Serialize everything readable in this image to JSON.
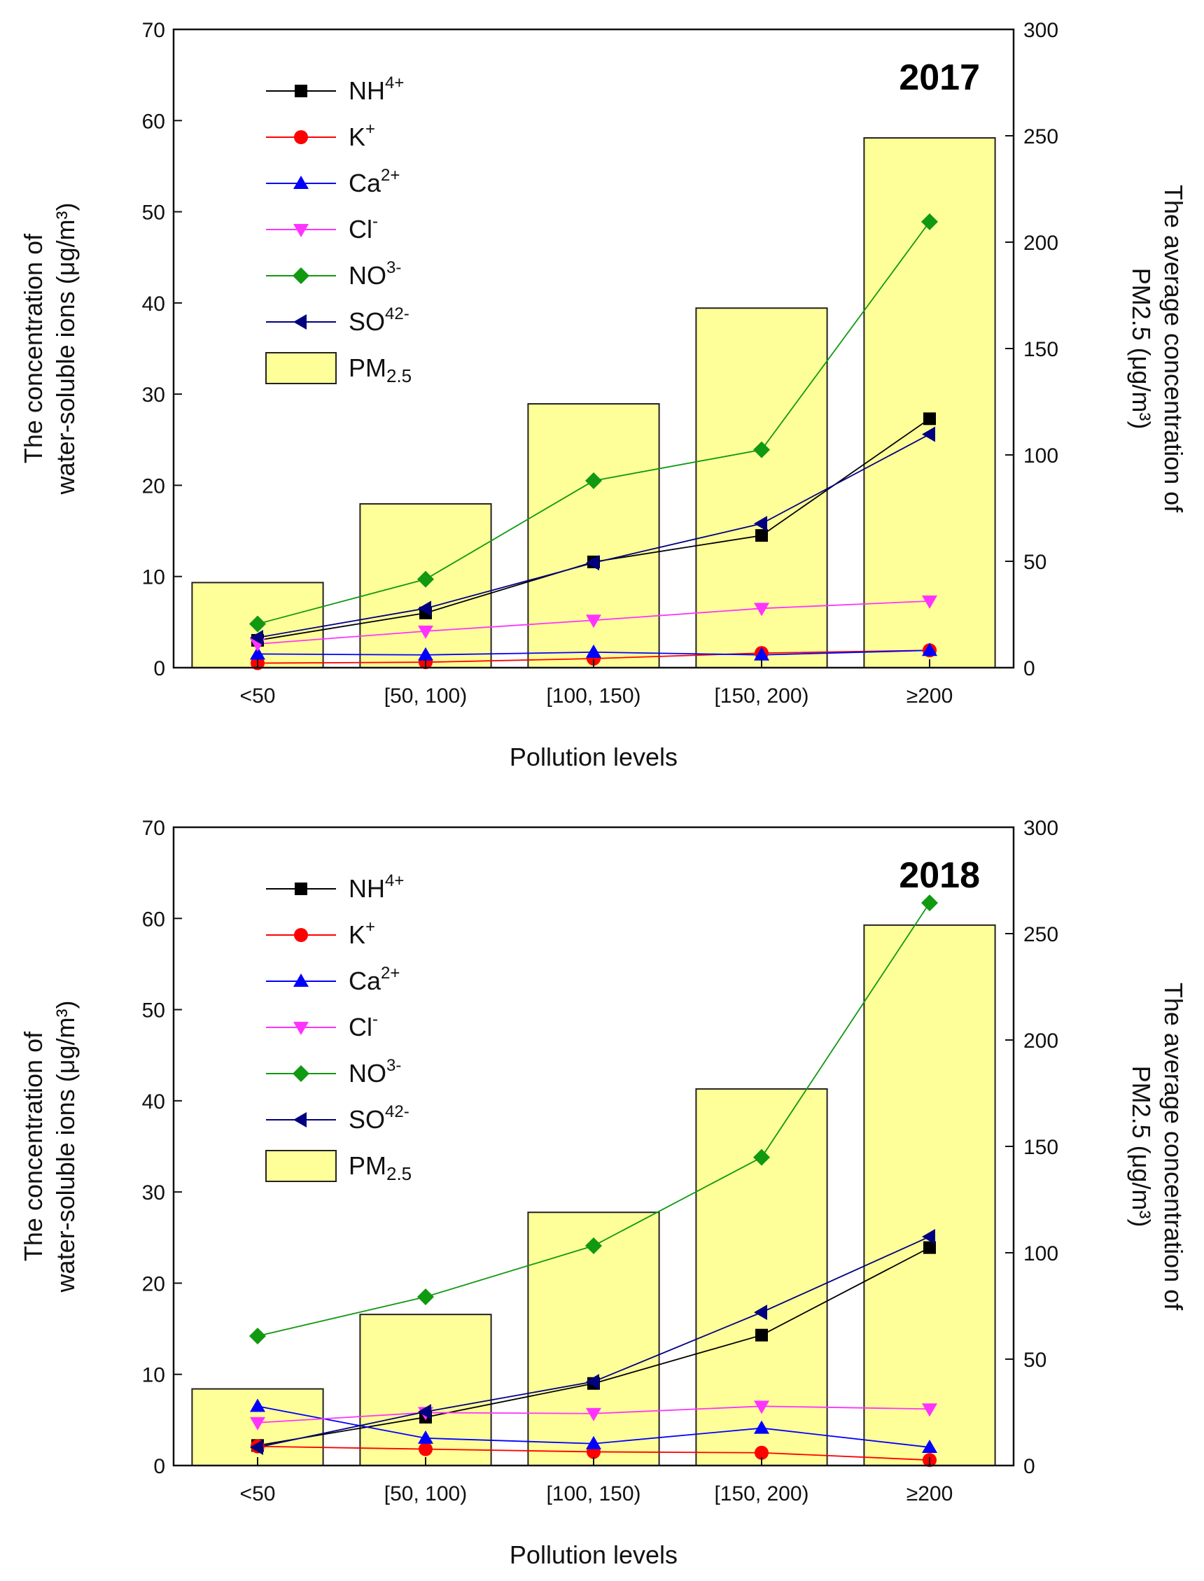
{
  "chart_data": [
    {
      "type": "bar+line",
      "annotation": "2017",
      "xlabel": "Pollution levels",
      "ylabel": "The concentration of|water-soluble ions (μg/m³)",
      "y2label": "The average concentration of|PM2.5 (μg/m³)",
      "ylim": [
        0,
        70
      ],
      "y2lim": [
        0,
        300
      ],
      "yticks": [
        "0",
        "10",
        "20",
        "30",
        "40",
        "50",
        "60",
        "70"
      ],
      "y2ticks": [
        "0",
        "50",
        "100",
        "150",
        "200",
        "250",
        "300"
      ],
      "categories": [
        "<50",
        "[50, 100)",
        "[100, 150)",
        "[150, 200)",
        "≥200"
      ],
      "bars": {
        "name": "PM2.5",
        "axis": "right",
        "color": "#ffff99",
        "values": [
          40,
          77,
          124,
          169,
          249
        ]
      },
      "series": [
        {
          "name": "NH4+",
          "color": "#000000",
          "marker": "square",
          "values": [
            3.0,
            6.0,
            11.6,
            14.5,
            27.3
          ]
        },
        {
          "name": "K+",
          "color": "#ff0000",
          "marker": "circle",
          "values": [
            0.5,
            0.6,
            1.0,
            1.6,
            1.9
          ]
        },
        {
          "name": "Ca2+",
          "color": "#0000ff",
          "marker": "triangle-up",
          "values": [
            1.5,
            1.4,
            1.7,
            1.4,
            1.9
          ]
        },
        {
          "name": "Cl-",
          "color": "#ff33ff",
          "marker": "triangle-down",
          "values": [
            2.6,
            4.0,
            5.2,
            6.5,
            7.3
          ]
        },
        {
          "name": "NO3-",
          "color": "#119911",
          "marker": "diamond",
          "values": [
            4.8,
            9.7,
            20.5,
            23.9,
            48.9
          ]
        },
        {
          "name": "SO42-",
          "color": "#000080",
          "marker": "triangle-left",
          "values": [
            3.3,
            6.5,
            11.5,
            15.8,
            25.6
          ]
        }
      ]
    },
    {
      "type": "bar+line",
      "annotation": "2018",
      "xlabel": "Pollution levels",
      "ylabel": "The concentration of|water-soluble ions (μg/m³)",
      "y2label": "The average concentration of|PM2.5 (μg/m³)",
      "ylim": [
        0,
        70
      ],
      "y2lim": [
        0,
        300
      ],
      "yticks": [
        "0",
        "10",
        "20",
        "30",
        "40",
        "50",
        "60",
        "70"
      ],
      "y2ticks": [
        "0",
        "50",
        "100",
        "150",
        "200",
        "250",
        "300"
      ],
      "categories": [
        "<50",
        "[50, 100)",
        "[100, 150)",
        "[150, 200)",
        "≥200"
      ],
      "bars": {
        "name": "PM2.5",
        "axis": "right",
        "color": "#ffff99",
        "values": [
          36,
          71,
          119,
          177,
          254
        ]
      },
      "series": [
        {
          "name": "NH4+",
          "color": "#000000",
          "marker": "square",
          "values": [
            2.2,
            5.3,
            9.0,
            14.3,
            23.9
          ]
        },
        {
          "name": "K+",
          "color": "#ff0000",
          "marker": "circle",
          "values": [
            2.1,
            1.8,
            1.5,
            1.4,
            0.6
          ]
        },
        {
          "name": "Ca2+",
          "color": "#0000ff",
          "marker": "triangle-up",
          "values": [
            6.5,
            3.0,
            2.4,
            4.1,
            2.0
          ]
        },
        {
          "name": "Cl-",
          "color": "#ff33ff",
          "marker": "triangle-down",
          "values": [
            4.7,
            5.8,
            5.7,
            6.5,
            6.2
          ]
        },
        {
          "name": "NO3-",
          "color": "#119911",
          "marker": "diamond",
          "values": [
            14.2,
            18.5,
            24.1,
            33.8,
            61.7
          ]
        },
        {
          "name": "SO42-",
          "color": "#000080",
          "marker": "triangle-left",
          "values": [
            2.0,
            5.9,
            9.2,
            16.8,
            25.1
          ]
        }
      ]
    }
  ]
}
